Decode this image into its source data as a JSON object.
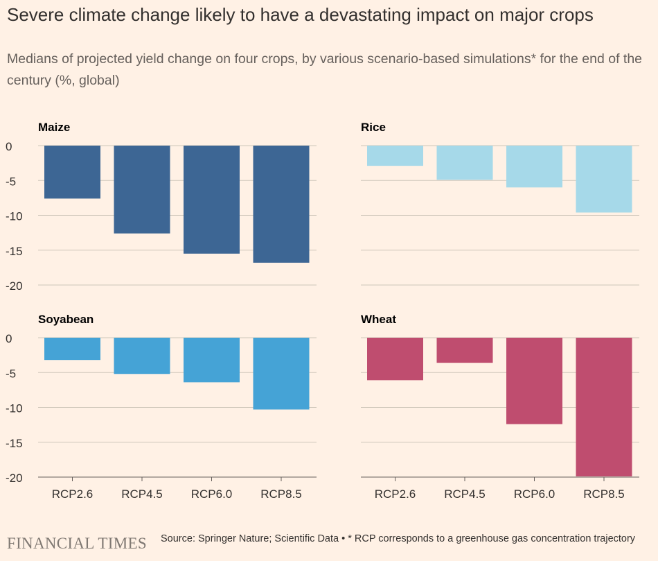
{
  "title": "Severe climate change likely to have a devastating impact on major crops",
  "subtitle": "Medians of projected yield change on four crops, by various scenario-based simulations* for the end of the century (%, global)",
  "footer": {
    "logo": "FINANCIAL TIMES",
    "note": "Source: Springer Nature; Scientific Data • * RCP corresponds to a greenhouse gas concentration trajectory"
  },
  "chart_data": [
    {
      "type": "bar",
      "title": "Maize",
      "categories": [
        "RCP2.6",
        "RCP4.5",
        "RCP6.0",
        "RCP8.5"
      ],
      "values": [
        -7.6,
        -12.6,
        -15.5,
        -16.8
      ],
      "ylim": [
        -20,
        0
      ],
      "yticks": [
        "0",
        "-5",
        "-10",
        "-15",
        "-20"
      ],
      "color": "#3d6694",
      "grid": true
    },
    {
      "type": "bar",
      "title": "Rice",
      "categories": [
        "RCP2.6",
        "RCP4.5",
        "RCP6.0",
        "RCP8.5"
      ],
      "values": [
        -2.9,
        -4.9,
        -6.0,
        -9.6
      ],
      "ylim": [
        -20,
        0
      ],
      "color": "#a6d9e9",
      "grid": true
    },
    {
      "type": "bar",
      "title": "Soyabean",
      "categories": [
        "RCP2.6",
        "RCP4.5",
        "RCP6.0",
        "RCP8.5"
      ],
      "values": [
        -3.2,
        -5.2,
        -6.4,
        -10.3
      ],
      "ylim": [
        -20,
        0
      ],
      "yticks": [
        "0",
        "-5",
        "-10",
        "-15",
        "-20"
      ],
      "color": "#45a3d6",
      "grid": true
    },
    {
      "type": "bar",
      "title": "Wheat",
      "categories": [
        "RCP2.6",
        "RCP4.5",
        "RCP6.0",
        "RCP8.5"
      ],
      "values": [
        -6.1,
        -3.6,
        -12.4,
        -19.9
      ],
      "ylim": [
        -20,
        0
      ],
      "color": "#bf4d6f",
      "grid": true
    }
  ]
}
